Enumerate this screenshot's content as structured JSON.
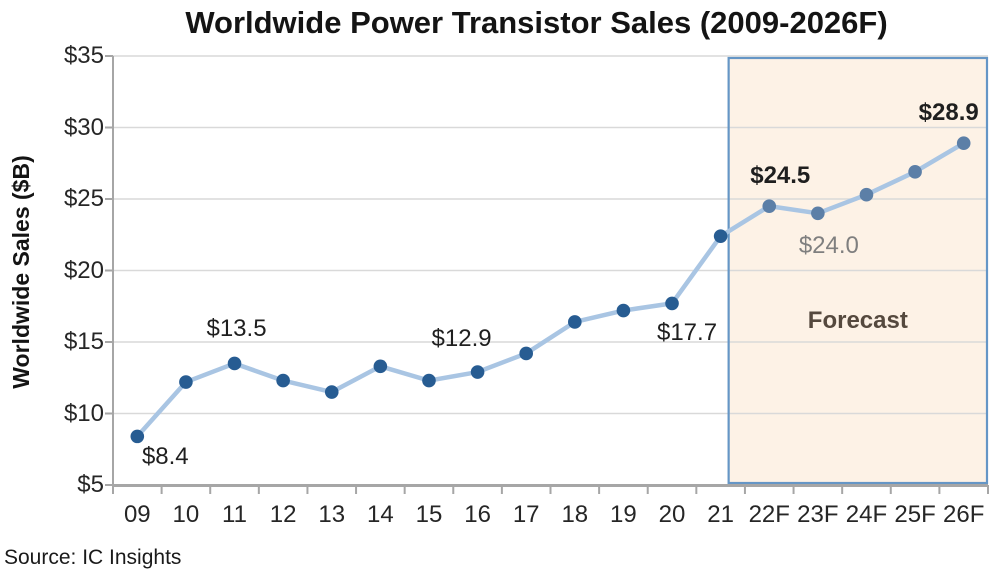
{
  "title": "Worldwide Power Transistor Sales (2009-2026F)",
  "source": "Source: IC Insights",
  "chart_data": {
    "type": "line",
    "title": "Worldwide Power Transistor Sales (2009-2026F)",
    "xlabel": "",
    "ylabel": "Worldwide Sales ($B)",
    "ylim": [
      5,
      35
    ],
    "ytick_step": 5,
    "ytick_labels": [
      "$5",
      "$10",
      "$15",
      "$20",
      "$25",
      "$30",
      "$35"
    ],
    "grid": true,
    "legend": "none",
    "categories": [
      "09",
      "10",
      "11",
      "12",
      "13",
      "14",
      "15",
      "16",
      "17",
      "18",
      "19",
      "20",
      "21",
      "22F",
      "23F",
      "24F",
      "25F",
      "26F"
    ],
    "series": [
      {
        "name": "Worldwide Power Transistor Sales ($B)",
        "values": [
          8.4,
          12.2,
          13.5,
          12.3,
          11.5,
          13.3,
          12.3,
          12.9,
          14.2,
          16.4,
          17.2,
          17.7,
          22.4,
          24.5,
          24.0,
          25.3,
          26.9,
          28.9
        ]
      }
    ],
    "forecast_region": {
      "label": "Forecast",
      "start_category": "22F",
      "end_category": "26F"
    },
    "annotations": [
      {
        "text": "$8.4",
        "category": "09",
        "placement": "below",
        "style": "dark"
      },
      {
        "text": "$13.5",
        "category": "11",
        "placement": "above",
        "style": "dark"
      },
      {
        "text": "$12.9",
        "category": "16",
        "placement": "above",
        "style": "dark"
      },
      {
        "text": "$17.7",
        "category": "20",
        "placement": "below",
        "style": "dark"
      },
      {
        "text": "$24.5",
        "category": "22F",
        "placement": "above",
        "style": "bold"
      },
      {
        "text": "$24.0",
        "category": "23F",
        "placement": "below",
        "style": "gray"
      },
      {
        "text": "$28.9",
        "category": "26F",
        "placement": "above",
        "style": "bold"
      }
    ],
    "colors": {
      "line": "#a9c5e3",
      "marker_historical": "#275c92",
      "marker_forecast": "#5c7fa7",
      "forecast_fill": "#fdf2e6",
      "forecast_border": "#6596c6",
      "forecast_text": "#55493e",
      "gridline": "#d9d9d9",
      "axis": "#a6a6a6",
      "annotation_dark": "#1f1f1f",
      "annotation_gray": "#7f7f7f"
    }
  }
}
